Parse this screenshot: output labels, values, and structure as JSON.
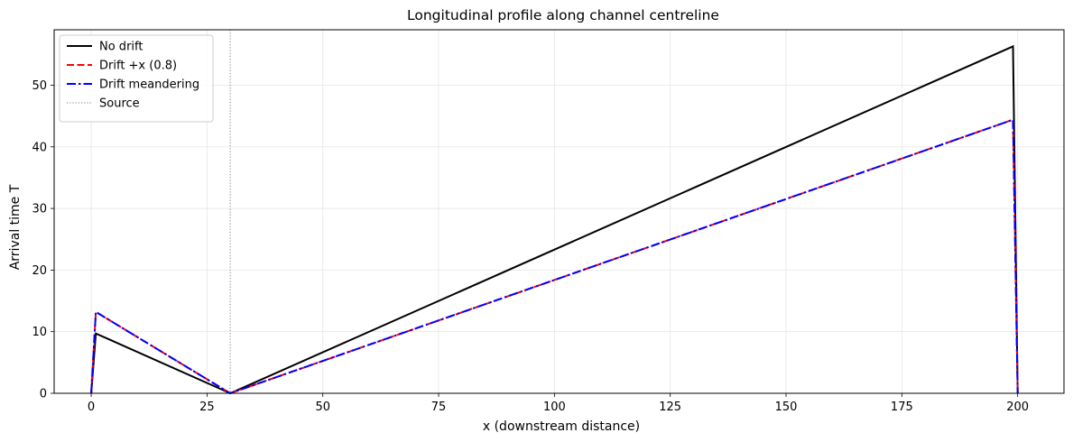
{
  "chart_data": {
    "type": "line",
    "title": "Longitudinal profile along channel centreline",
    "xlabel": "x (downstream distance)",
    "ylabel": "Arrival time T",
    "xlim": [
      -8,
      210
    ],
    "ylim": [
      0,
      59
    ],
    "xticks": [
      0,
      25,
      50,
      75,
      100,
      125,
      150,
      175,
      200
    ],
    "yticks": [
      0,
      10,
      20,
      30,
      40,
      50
    ],
    "grid": true,
    "legend": "top-left",
    "series": [
      {
        "name": "No drift",
        "color": "#000000",
        "dash": "solid",
        "x": [
          0,
          1,
          30,
          199,
          200
        ],
        "y": [
          0,
          9.7,
          0,
          56.3,
          0
        ]
      },
      {
        "name": "Drift +x (0.8)",
        "color": "#ff0000",
        "dash": "dashed",
        "x": [
          0,
          1,
          30,
          199,
          200
        ],
        "y": [
          0,
          13.2,
          0,
          44.4,
          0
        ]
      },
      {
        "name": "Drift meandering",
        "color": "#0000ff",
        "dash": "dashdot",
        "x": [
          0,
          1,
          30,
          199,
          200
        ],
        "y": [
          0,
          13.2,
          0,
          44.4,
          0
        ]
      }
    ],
    "annotations": [
      {
        "name": "Source",
        "type": "vline",
        "x": 30,
        "color": "#808080",
        "dash": "dotted"
      }
    ]
  }
}
